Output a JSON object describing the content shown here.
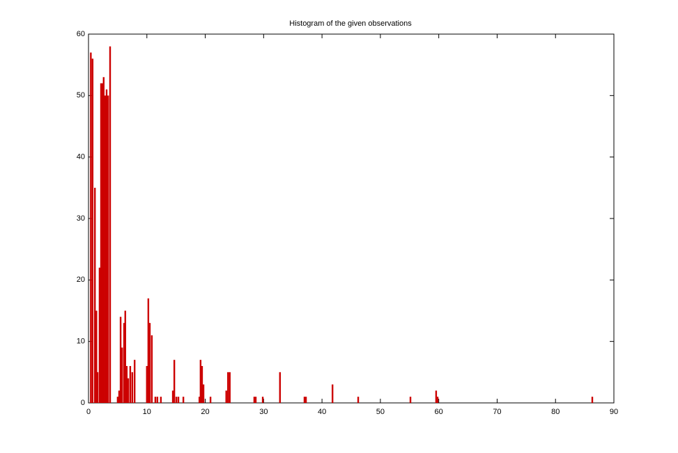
{
  "chart_data": {
    "type": "bar",
    "title": "Histogram of the given observations",
    "x": [
      0.4,
      0.7,
      1.1,
      1.35,
      1.55,
      1.9,
      2.15,
      2.4,
      2.6,
      2.85,
      3.1,
      3.35,
      3.7,
      5.0,
      5.25,
      5.5,
      5.75,
      6.1,
      6.3,
      6.55,
      6.8,
      7.15,
      7.5,
      7.9,
      10.0,
      10.25,
      10.5,
      10.85,
      11.45,
      11.8,
      12.4,
      14.45,
      14.7,
      15.05,
      15.4,
      16.25,
      19.0,
      19.2,
      19.45,
      19.7,
      20.9,
      23.6,
      23.9,
      24.2,
      28.4,
      28.65,
      29.85,
      32.8,
      37.0,
      37.25,
      41.8,
      46.2,
      55.15,
      59.55,
      59.8,
      86.3
    ],
    "values": [
      57,
      56,
      35,
      15,
      5,
      22,
      52,
      52,
      53,
      50,
      51,
      50,
      58,
      1,
      2,
      14,
      9,
      13,
      15,
      6,
      4,
      6,
      5,
      7,
      6,
      17,
      13,
      11,
      1,
      1,
      1,
      2,
      7,
      1,
      1,
      1,
      1,
      7,
      6,
      3,
      1,
      2,
      5,
      5,
      1,
      1,
      1,
      5,
      1,
      1,
      3,
      1,
      1,
      2,
      1,
      1
    ],
    "color": "#cc0000",
    "xlim": [
      0,
      90
    ],
    "xticks": [
      0,
      10,
      20,
      30,
      40,
      50,
      60,
      70,
      80,
      90
    ],
    "ylim": [
      0,
      60
    ],
    "yticks": [
      0,
      10,
      20,
      30,
      40,
      50,
      60
    ]
  }
}
